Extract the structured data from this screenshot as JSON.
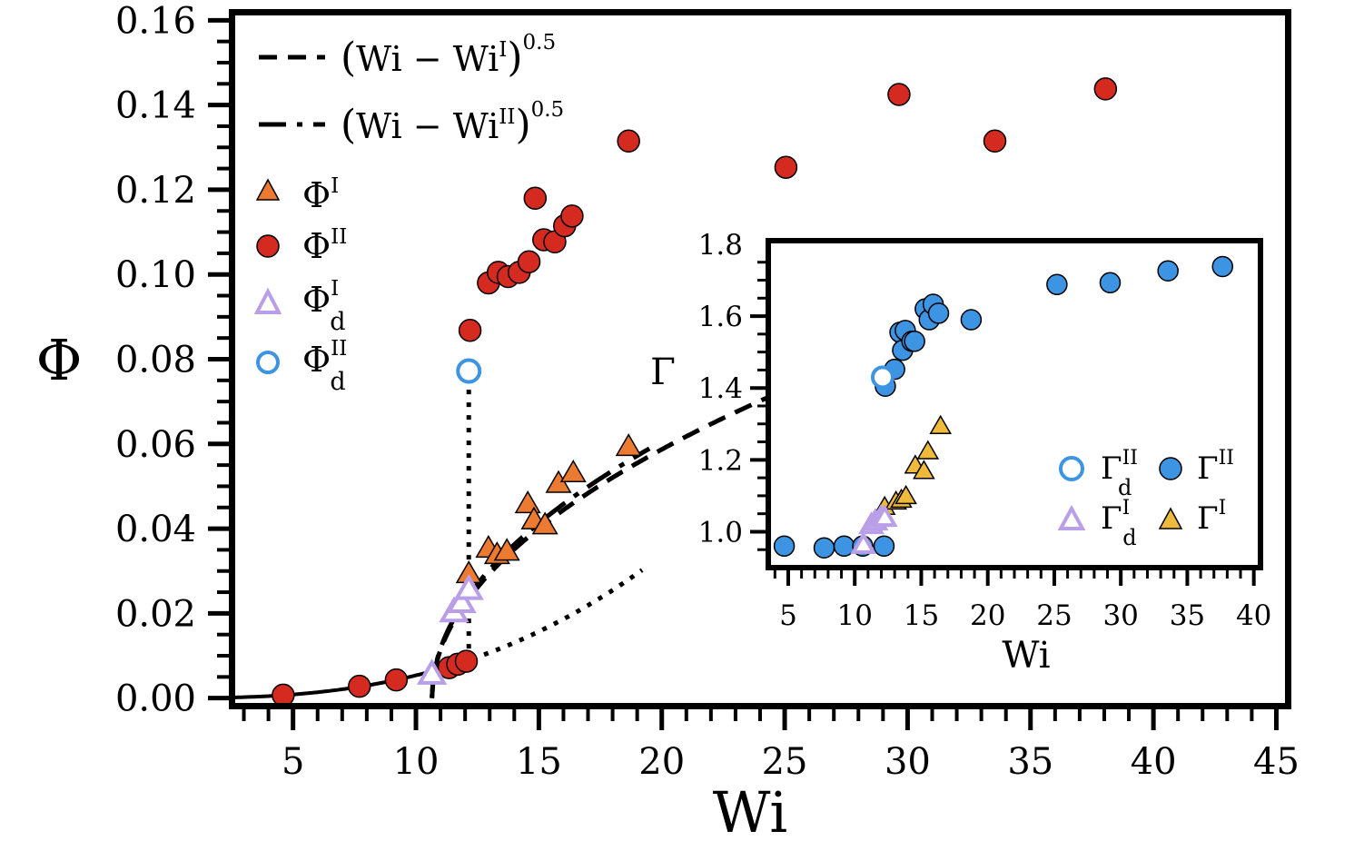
{
  "chart_data": [
    {
      "id": "main",
      "type": "scatter",
      "xlabel": "Wi",
      "ylabel": "Φ",
      "xlim": [
        2.5,
        45.5
      ],
      "ylim": [
        -0.002,
        0.162
      ],
      "xticks": [
        5,
        10,
        15,
        20,
        25,
        30,
        35,
        40,
        45
      ],
      "xtick_labels": [
        "5",
        "10",
        "15",
        "20",
        "25",
        "30",
        "35",
        "40",
        "45"
      ],
      "yticks": [
        0.0,
        0.02,
        0.04,
        0.06,
        0.08,
        0.1,
        0.12,
        0.14,
        0.16
      ],
      "ytick_labels": [
        "0.00",
        "0.02",
        "0.04",
        "0.06",
        "0.08",
        "0.10",
        "0.12",
        "0.14",
        "0.16"
      ],
      "grid": false,
      "legend_position": "top-left",
      "series": [
        {
          "name": "Φ^I",
          "base": "Φ",
          "sup": "I",
          "sub": "",
          "marker": "triangle",
          "filled": true,
          "color": "#ec7a31",
          "x": [
            12.15,
            12.95,
            13.3,
            13.7,
            14.55,
            14.8,
            15.25,
            15.8,
            16.4,
            18.65
          ],
          "y": [
            0.0295,
            0.0355,
            0.034,
            0.0348,
            0.046,
            0.0422,
            0.041,
            0.0508,
            0.0533,
            0.0595
          ]
        },
        {
          "name": "Φ^II",
          "base": "Φ",
          "sup": "II",
          "sub": "",
          "marker": "circle",
          "filled": true,
          "color": "#d42a20",
          "x": [
            4.6,
            7.7,
            9.2,
            11.35,
            11.7,
            12.05,
            12.2,
            12.95,
            13.35,
            13.75,
            14.2,
            14.6,
            14.85,
            15.2,
            15.65,
            16.05,
            16.35,
            18.65,
            25.05,
            29.65,
            33.55,
            38.05
          ],
          "y": [
            0.0007,
            0.0028,
            0.0043,
            0.0072,
            0.008,
            0.0087,
            0.0868,
            0.098,
            0.1005,
            0.0995,
            0.1005,
            0.103,
            0.118,
            0.1082,
            0.1077,
            0.1115,
            0.1138,
            0.1315,
            0.1253,
            0.1425,
            0.1315,
            0.1438
          ]
        },
        {
          "name": "Φ_d^I",
          "base": "Φ",
          "sup": "I",
          "sub": "d",
          "marker": "triangle",
          "filled": false,
          "color": "#b99ee8",
          "x": [
            10.65,
            11.55,
            11.85,
            12.15
          ],
          "y": [
            0.0058,
            0.0205,
            0.0227,
            0.0258
          ]
        },
        {
          "name": "Φ_d^II",
          "base": "Φ",
          "sup": "II",
          "sub": "d",
          "marker": "circle",
          "filled": false,
          "color": "#3d94e3",
          "x": [
            12.15
          ],
          "y": [
            0.0772
          ]
        }
      ],
      "fits": [
        {
          "name": "(Wi − Wi^I)^0.5",
          "style": "dashed",
          "onset": 10.65,
          "coef": 0.0192,
          "x_from": 10.65,
          "x_to": 24.4,
          "label_parts": {
            "open": "(",
            "base": "Wi − Wi",
            "sup": "I",
            "close": ")",
            "exponent": "0.5"
          }
        },
        {
          "name": "(Wi − Wi^II)^0.5",
          "style": "dash-dot",
          "onset": 10.65,
          "coef": 0.0198,
          "x_from": 10.65,
          "x_to": 19.5,
          "label_parts": {
            "open": "(",
            "base": "Wi − Wi",
            "sup": "II",
            "close": ")",
            "exponent": "0.5"
          }
        }
      ],
      "dotted_curves": [
        {
          "kind": "base-power",
          "note": "dotted continuation below transition",
          "x_from": 2.5,
          "x_to": 19.2,
          "A": 0.0087,
          "x0": 12.0,
          "p": 2.65
        },
        {
          "kind": "vertical",
          "x": 12.15,
          "y_from": 0.0087,
          "y_to": 0.0772
        }
      ]
    },
    {
      "id": "inset",
      "type": "scatter",
      "xlabel": "Wi",
      "ylabel": "Γ",
      "xlim": [
        3.5,
        40.5
      ],
      "ylim": [
        0.9,
        1.81
      ],
      "xticks": [
        5,
        10,
        15,
        20,
        25,
        30,
        35,
        40
      ],
      "xtick_labels": [
        "5",
        "10",
        "15",
        "20",
        "25",
        "30",
        "35",
        "40"
      ],
      "yticks": [
        1.0,
        1.2,
        1.4,
        1.6,
        1.8
      ],
      "ytick_labels": [
        "1.0",
        "1.2",
        "1.4",
        "1.6",
        "1.8"
      ],
      "grid": false,
      "legend_position": "bottom-right",
      "series": [
        {
          "name": "Γ_d^II",
          "base": "Γ",
          "sup": "II",
          "sub": "d",
          "marker": "circle",
          "filled": false,
          "color": "#3d94e3",
          "x": [
            12.1
          ],
          "y": [
            1.43
          ]
        },
        {
          "name": "Γ^II",
          "base": "Γ",
          "sup": "II",
          "sub": "",
          "marker": "circle",
          "filled": true,
          "color": "#3d94e3",
          "x": [
            4.7,
            7.7,
            9.2,
            10.6,
            12.2,
            12.3,
            13.0,
            13.4,
            13.8,
            13.6,
            14.3,
            14.5,
            15.3,
            15.6,
            15.9,
            16.3,
            18.75,
            25.2,
            29.2,
            33.55,
            37.65
          ],
          "y": [
            0.96,
            0.955,
            0.96,
            0.96,
            0.96,
            1.405,
            1.452,
            1.555,
            1.56,
            1.505,
            1.53,
            1.53,
            1.62,
            1.59,
            1.633,
            1.608,
            1.59,
            1.688,
            1.693,
            1.726,
            1.738
          ]
        },
        {
          "name": "Γ_d^I",
          "base": "Γ",
          "sup": "I",
          "sub": "d",
          "marker": "triangle",
          "filled": false,
          "color": "#b99ee8",
          "x": [
            10.65,
            11.25,
            11.55,
            11.95,
            12.25
          ],
          "y": [
            0.965,
            1.02,
            1.03,
            1.04,
            1.04
          ]
        },
        {
          "name": "Γ^I",
          "base": "Γ",
          "sup": "I",
          "sub": "",
          "marker": "triangle",
          "filled": true,
          "color": "#eeba3c",
          "x": [
            12.25,
            13.1,
            13.5,
            13.85,
            14.55,
            15.2,
            15.5,
            16.45
          ],
          "y": [
            1.07,
            1.085,
            1.09,
            1.1,
            1.185,
            1.17,
            1.225,
            1.295
          ]
        }
      ]
    }
  ]
}
